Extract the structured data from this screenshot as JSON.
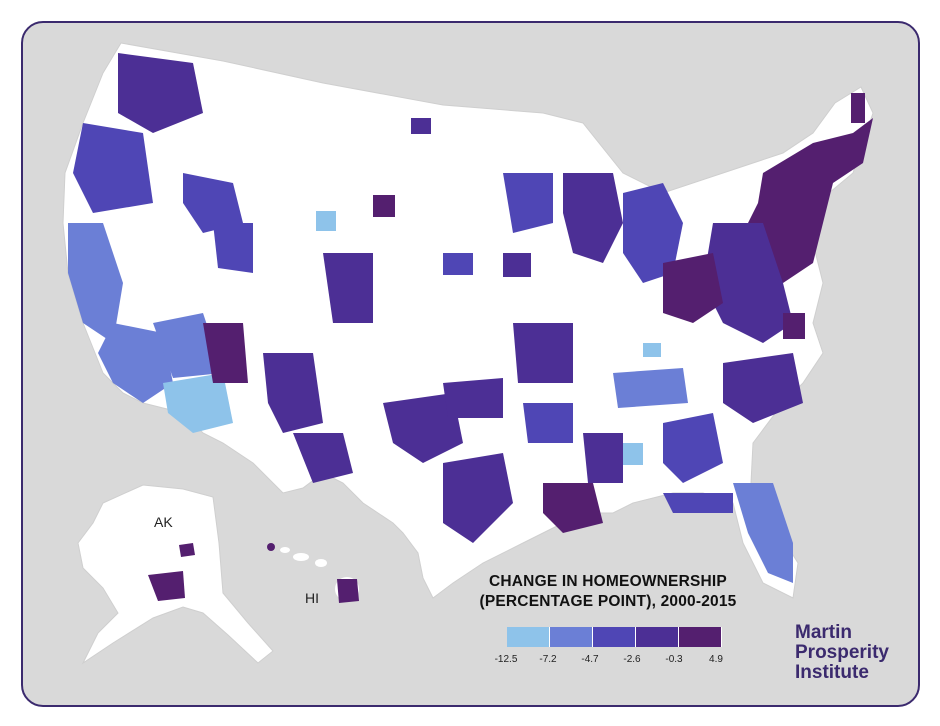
{
  "map": {
    "title_line1": "CHANGE IN HOMEOWNERSHIP",
    "title_line2": "(PERCENTAGE POINT), 2000-2015",
    "region_labels": {
      "alaska": "AK",
      "hawaii": "HI"
    }
  },
  "legend": {
    "ticks": [
      "-12.5",
      "-7.2",
      "-4.7",
      "-2.6",
      "-0.3",
      "4.9"
    ],
    "colors": [
      "#8ec3ea",
      "#6b7fd6",
      "#4f46b5",
      "#4c2f95",
      "#541f6f"
    ]
  },
  "logo": {
    "line1": "Martin",
    "line2": "Prosperity",
    "line3": "Institute"
  },
  "colors": {
    "background": "#d9d9d9",
    "land": "#ffffff",
    "frame_border": "#3b2a6e",
    "brand": "#3b2a6e"
  }
}
